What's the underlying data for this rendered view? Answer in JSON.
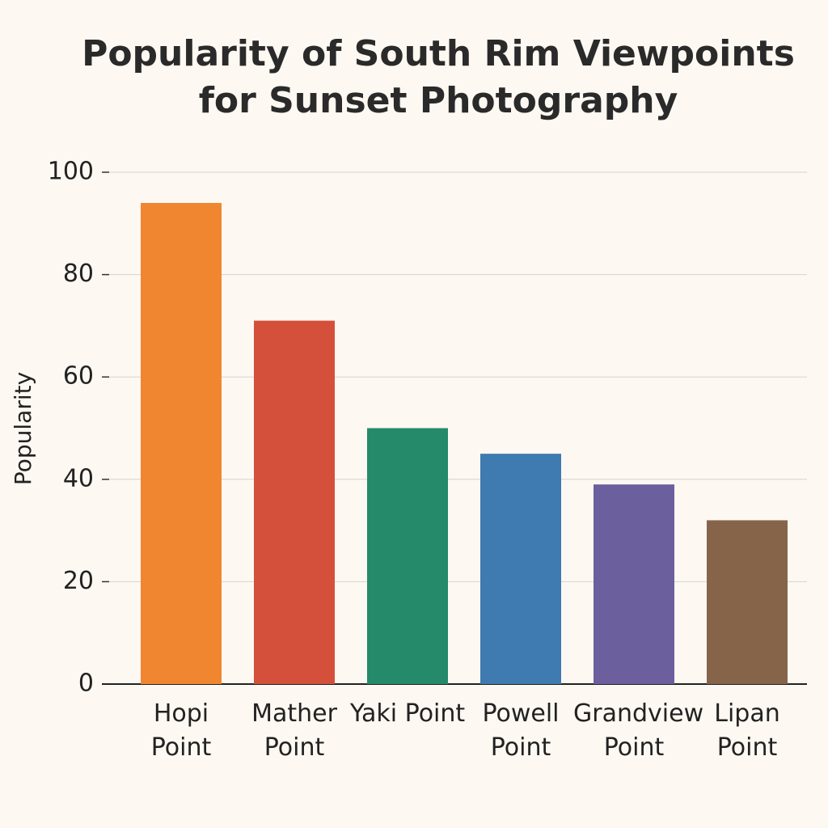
{
  "chart_data": {
    "type": "bar",
    "title": "Popularity of South Rim Viewpoints for Sunset Photography",
    "y_label": "Popularity",
    "categories": [
      "Hopi Point",
      "Mather Point",
      "Yaki Point",
      "Powell Point",
      "Grandview Point",
      "Lipan Point"
    ],
    "values": [
      94,
      71,
      50,
      45,
      39,
      32
    ],
    "colors": [
      "#f0862f",
      "#d4503a",
      "#248a6a",
      "#3f7ab0",
      "#6b5f9e",
      "#86644a"
    ],
    "ylim": [
      0,
      100
    ],
    "yticks": [
      0,
      20,
      40,
      60,
      80,
      100
    ],
    "grid": true
  }
}
